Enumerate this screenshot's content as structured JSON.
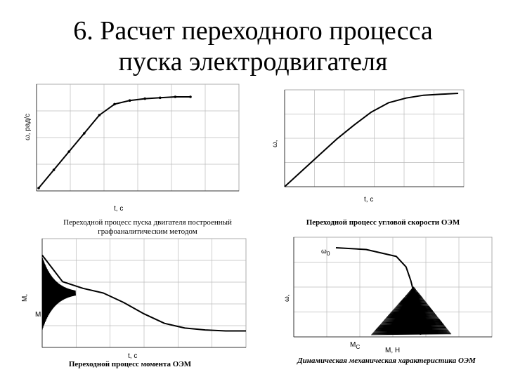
{
  "slide": {
    "title_line1": "6. Расчет переходного процесса",
    "title_line2": "пуска электродвигателя"
  },
  "panels": {
    "top_left": {
      "caption_line1": "Переходной процесс пуска двигателя построенный",
      "caption_line2": "графоаналитическим методом",
      "ylabel": "ω, рад/с",
      "xlabel": "t, c"
    },
    "top_right": {
      "caption": "Переходной процесс угловой скорости ОЭМ",
      "ylabel": "ω,",
      "xlabel": "t, c"
    },
    "bottom_left": {
      "caption": "Переходной процесс момента ОЭМ",
      "ylabel": "M,",
      "m_label": "M",
      "xlabel": "t, c"
    },
    "bottom_right": {
      "caption": "Динамическая механическая характеристика ОЭМ",
      "ylabel": "ω,",
      "omega0_label": "ω",
      "omega0_sub": "0",
      "mc_label": "M",
      "mc_sub": "C",
      "xlabel": "M, H"
    }
  },
  "chart_data": [
    {
      "type": "line",
      "x": [
        0,
        1,
        2,
        3,
        4,
        5,
        6,
        7,
        8,
        9,
        10
      ],
      "series": [
        {
          "values": [
            0,
            0.2,
            0.4,
            0.6,
            0.8,
            0.92,
            0.96,
            0.98,
            0.99,
            1.0,
            1.0
          ]
        }
      ]
    },
    {
      "type": "line",
      "x": [
        0,
        1,
        2,
        3,
        4,
        5,
        6,
        7,
        8,
        9,
        10
      ],
      "series": [
        {
          "values": [
            0,
            0.17,
            0.34,
            0.51,
            0.66,
            0.8,
            0.9,
            0.95,
            0.98,
            0.99,
            1.0
          ]
        }
      ]
    },
    {
      "type": "line",
      "x": [
        0,
        1,
        2,
        3,
        4,
        5,
        6,
        7,
        8,
        9,
        10
      ],
      "series": [
        {
          "values": [
            0.9,
            0.62,
            0.55,
            0.5,
            0.4,
            0.28,
            0.18,
            0.13,
            0.11,
            0.1,
            0.1
          ]
        }
      ]
    },
    {
      "type": "line",
      "x": [
        0.0,
        0.25,
        0.5,
        0.58,
        0.62,
        0.66,
        0.68,
        0.7
      ],
      "series": [
        {
          "values": [
            1.0,
            0.98,
            0.9,
            0.78,
            0.62,
            0.4,
            0.2,
            0.0
          ]
        }
      ]
    }
  ]
}
